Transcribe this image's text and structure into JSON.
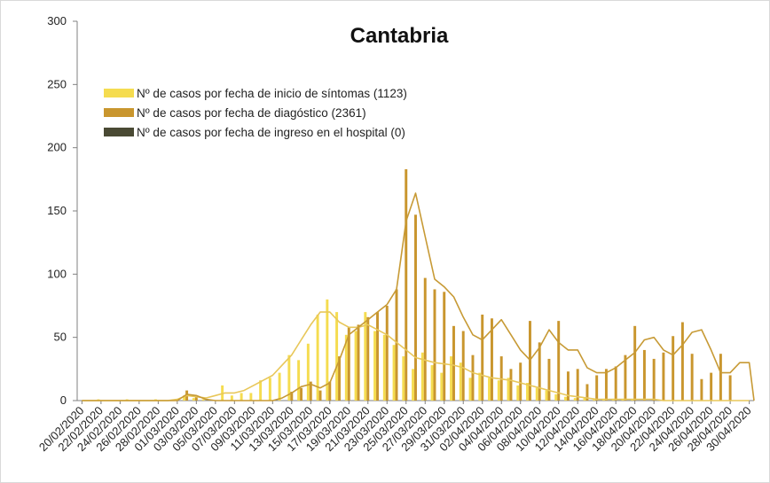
{
  "chart_data": {
    "type": "bar",
    "title": "Cantabria",
    "xlabel": "",
    "ylabel": "",
    "ylim": [
      0,
      300
    ],
    "yticks": [
      0,
      50,
      100,
      150,
      200,
      250,
      300
    ],
    "grid": false,
    "legend_position": "top-left",
    "xtick_step": 2,
    "dates": [
      "20/02/2020",
      "21/02/2020",
      "22/02/2020",
      "23/02/2020",
      "24/02/2020",
      "25/02/2020",
      "26/02/2020",
      "27/02/2020",
      "28/02/2020",
      "29/02/2020",
      "01/03/2020",
      "02/03/2020",
      "03/03/2020",
      "04/03/2020",
      "05/03/2020",
      "06/03/2020",
      "07/03/2020",
      "08/03/2020",
      "09/03/2020",
      "10/03/2020",
      "11/03/2020",
      "12/03/2020",
      "13/03/2020",
      "14/03/2020",
      "15/03/2020",
      "16/03/2020",
      "17/03/2020",
      "18/03/2020",
      "19/03/2020",
      "20/03/2020",
      "21/03/2020",
      "22/03/2020",
      "23/03/2020",
      "24/03/2020",
      "25/03/2020",
      "26/03/2020",
      "27/03/2020",
      "28/03/2020",
      "29/03/2020",
      "30/03/2020",
      "31/03/2020",
      "01/04/2020",
      "02/04/2020",
      "03/04/2020",
      "04/04/2020",
      "05/04/2020",
      "06/04/2020",
      "07/04/2020",
      "08/04/2020",
      "09/04/2020",
      "10/04/2020",
      "11/04/2020",
      "12/04/2020",
      "13/04/2020",
      "14/04/2020",
      "15/04/2020",
      "16/04/2020",
      "17/04/2020",
      "18/04/2020",
      "19/04/2020",
      "20/04/2020",
      "21/04/2020",
      "22/04/2020",
      "23/04/2020",
      "24/04/2020",
      "25/04/2020",
      "26/04/2020",
      "27/04/2020",
      "28/04/2020",
      "29/04/2020",
      "30/04/2020"
    ],
    "series": [
      {
        "name": "Nº de casos por fecha de inicio de síntomas (1123)",
        "color": "#f5dc50",
        "values": [
          0,
          0,
          1,
          0,
          0,
          1,
          0,
          0,
          1,
          0,
          0,
          4,
          2,
          1,
          0,
          12,
          4,
          6,
          6,
          16,
          18,
          22,
          36,
          32,
          45,
          68,
          80,
          70,
          52,
          55,
          70,
          55,
          52,
          44,
          35,
          25,
          38,
          28,
          22,
          35,
          30,
          18,
          22,
          18,
          16,
          18,
          12,
          14,
          10,
          8,
          5,
          3,
          2,
          2,
          1,
          1,
          1,
          1,
          1,
          0,
          0,
          0,
          0,
          0,
          0,
          0,
          0,
          0,
          0,
          0,
          0
        ]
      },
      {
        "name": "Nº de casos por fecha de diagóstico (2361)",
        "color": "#c9962e",
        "values": [
          0,
          0,
          0,
          0,
          0,
          0,
          0,
          0,
          0,
          0,
          0,
          8,
          3,
          0,
          0,
          0,
          0,
          0,
          0,
          0,
          0,
          0,
          7,
          10,
          15,
          8,
          15,
          35,
          58,
          60,
          66,
          70,
          75,
          88,
          183,
          147,
          97,
          88,
          86,
          59,
          55,
          36,
          68,
          65,
          35,
          25,
          30,
          63,
          46,
          33,
          63,
          23,
          25,
          13,
          20,
          25,
          27,
          36,
          59,
          40,
          33,
          38,
          51,
          62,
          37,
          17,
          22,
          37,
          20,
          0,
          0
        ]
      },
      {
        "name": "Nº de casos por fecha de ingreso en el hospital (0)",
        "color": "#4a4a34",
        "values": [
          0,
          0,
          0,
          0,
          0,
          0,
          0,
          0,
          0,
          0,
          0,
          0,
          0,
          0,
          0,
          0,
          0,
          0,
          0,
          0,
          0,
          0,
          0,
          0,
          0,
          0,
          0,
          0,
          0,
          0,
          0,
          0,
          0,
          0,
          0,
          0,
          0,
          0,
          0,
          0,
          0,
          0,
          0,
          0,
          0,
          0,
          0,
          0,
          0,
          0,
          0,
          0,
          0,
          0,
          0,
          0,
          0,
          0,
          0,
          0,
          0,
          0,
          0,
          0,
          0,
          0,
          0,
          0,
          0,
          0,
          0
        ]
      }
    ],
    "trend_lines": [
      {
        "color": "#e8c75a",
        "values": [
          0,
          0,
          0,
          0,
          0,
          0,
          0,
          0,
          0,
          0,
          1,
          4,
          3,
          2,
          4,
          6,
          6,
          8,
          12,
          16,
          20,
          28,
          36,
          48,
          60,
          70,
          70,
          62,
          58,
          58,
          60,
          56,
          52,
          46,
          40,
          34,
          32,
          30,
          29,
          28,
          26,
          22,
          20,
          18,
          17,
          16,
          14,
          12,
          10,
          8,
          6,
          4,
          3,
          2,
          1,
          1,
          1,
          1,
          1,
          1,
          1,
          0,
          0,
          0,
          0,
          0,
          0,
          0,
          0,
          0,
          0
        ]
      },
      {
        "color": "#c79a35",
        "values": [
          0,
          0,
          0,
          0,
          0,
          0,
          0,
          0,
          0,
          0,
          0,
          5,
          4,
          1,
          0,
          0,
          0,
          0,
          0,
          0,
          0,
          2,
          6,
          11,
          13,
          10,
          14,
          32,
          52,
          58,
          64,
          70,
          76,
          88,
          142,
          164,
          130,
          96,
          90,
          82,
          66,
          52,
          48,
          56,
          64,
          52,
          40,
          32,
          42,
          56,
          46,
          40,
          40,
          26,
          22,
          22,
          26,
          32,
          38,
          48,
          50,
          40,
          36,
          44,
          54,
          56,
          40,
          22,
          22,
          30,
          30
        ]
      }
    ],
    "trend_end": {
      "day": 71,
      "value": 0
    }
  }
}
